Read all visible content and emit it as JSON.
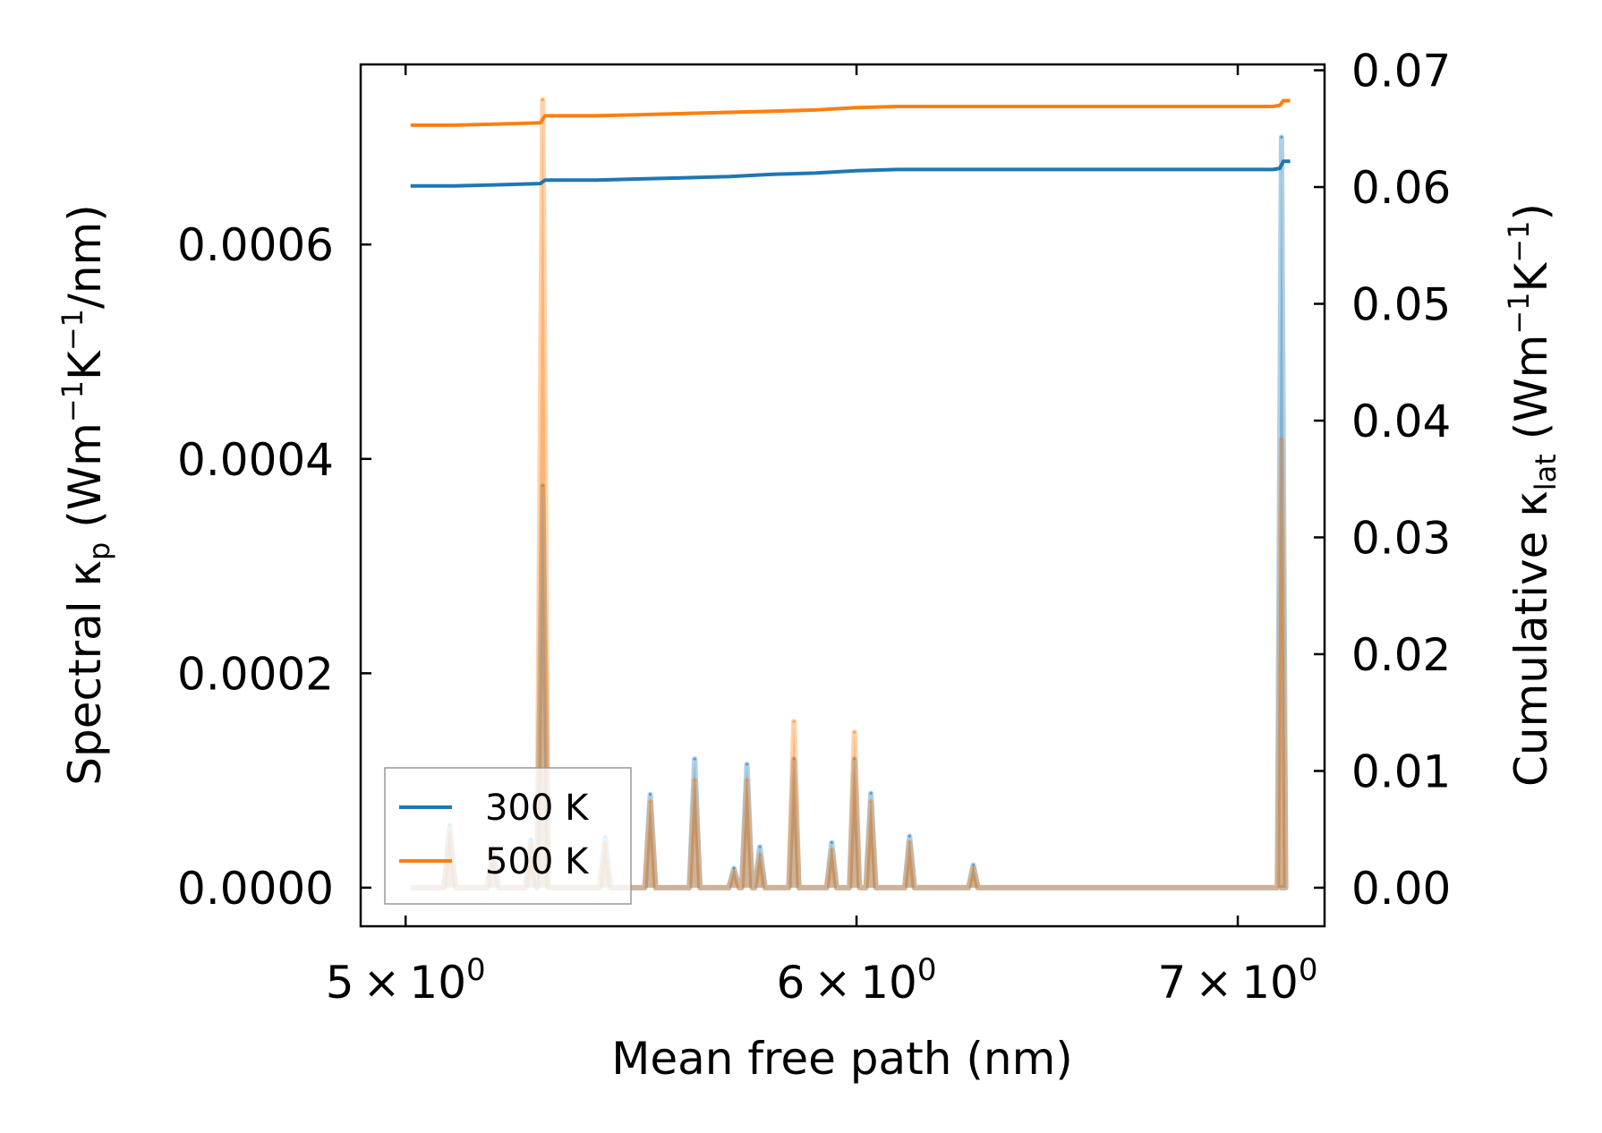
{
  "chart_data": {
    "type": "line",
    "xlabel": "Mean free path (nm)",
    "x_scale": "log",
    "xlim": [
      4.91,
      7.25
    ],
    "xticks": [
      {
        "value": 5,
        "mantissa": "5",
        "base": "10",
        "exp": "0"
      },
      {
        "value": 6,
        "mantissa": "6",
        "base": "10",
        "exp": "0"
      },
      {
        "value": 7,
        "mantissa": "7",
        "base": "10",
        "exp": "0"
      }
    ],
    "ylabel_left": {
      "prefix": "Spectral κ",
      "sub": "p",
      "unit_a": " (Wm",
      "exp_a": "−1",
      "unit_b": "K",
      "exp_b": "−1",
      "unit_c": "/nm)"
    },
    "ylabel_right": {
      "prefix": "Cumulative κ",
      "sub": "lat",
      "unit_a": " (Wm",
      "exp_a": "−1",
      "unit_b": "K",
      "exp_b": "−1",
      "unit_c": ")"
    },
    "ylim_left": [
      -3.6e-05,
      0.000768
    ],
    "ylim_right": [
      -0.0033,
      0.0705
    ],
    "yticks_left": [
      {
        "value": 0.0,
        "label": "0.0000"
      },
      {
        "value": 0.0002,
        "label": "0.0002"
      },
      {
        "value": 0.0004,
        "label": "0.0004"
      },
      {
        "value": 0.0006,
        "label": "0.0006"
      }
    ],
    "yticks_right": [
      {
        "value": 0.0,
        "label": "0.00"
      },
      {
        "value": 0.01,
        "label": "0.01"
      },
      {
        "value": 0.02,
        "label": "0.02"
      },
      {
        "value": 0.03,
        "label": "0.03"
      },
      {
        "value": 0.04,
        "label": "0.04"
      },
      {
        "value": 0.05,
        "label": "0.05"
      },
      {
        "value": 0.06,
        "label": "0.06"
      },
      {
        "value": 0.07,
        "label": "0.07"
      }
    ],
    "legend_position": "lower-left",
    "series": [
      {
        "name": "300 K",
        "color": "#1f77b4",
        "spectral_baseline_x": [
          5.01,
          7.12
        ],
        "spectral_peaks": [
          {
            "x": 5.09,
            "y": 5.8e-05
          },
          {
            "x": 5.18,
            "y": 3.7e-05
          },
          {
            "x": 5.26,
            "y": 4.5e-05
          },
          {
            "x": 5.285,
            "y": 0.000375
          },
          {
            "x": 5.42,
            "y": 4.7e-05
          },
          {
            "x": 5.52,
            "y": 8.7e-05
          },
          {
            "x": 5.62,
            "y": 0.00012
          },
          {
            "x": 5.71,
            "y": 1.8e-05
          },
          {
            "x": 5.74,
            "y": 0.000115
          },
          {
            "x": 5.77,
            "y": 3.8e-05
          },
          {
            "x": 5.85,
            "y": 0.00012
          },
          {
            "x": 5.94,
            "y": 4.2e-05
          },
          {
            "x": 5.995,
            "y": 0.00012
          },
          {
            "x": 6.035,
            "y": 8.8e-05
          },
          {
            "x": 6.13,
            "y": 4.8e-05
          },
          {
            "x": 6.29,
            "y": 2.1e-05
          },
          {
            "x": 7.125,
            "y": 0.0007
          }
        ],
        "cumulative": {
          "x": [
            5.01,
            5.1,
            5.2,
            5.28,
            5.29,
            5.4,
            5.5,
            5.6,
            5.7,
            5.8,
            5.9,
            6.0,
            6.1,
            6.2,
            6.4,
            6.6,
            6.8,
            7.0,
            7.1,
            7.12,
            7.13,
            7.15
          ],
          "y": [
            0.0601,
            0.0601,
            0.0602,
            0.0603,
            0.0606,
            0.0606,
            0.0607,
            0.0608,
            0.0609,
            0.0611,
            0.0612,
            0.0614,
            0.0615,
            0.0615,
            0.0615,
            0.0615,
            0.0615,
            0.0615,
            0.0615,
            0.0616,
            0.0622,
            0.0622
          ]
        }
      },
      {
        "name": "500 K",
        "color": "#ff7f0e",
        "spectral_baseline_x": [
          5.01,
          7.12
        ],
        "spectral_peaks": [
          {
            "x": 5.09,
            "y": 5e-05
          },
          {
            "x": 5.18,
            "y": 3.2e-05
          },
          {
            "x": 5.26,
            "y": 4e-05
          },
          {
            "x": 5.285,
            "y": 0.000735
          },
          {
            "x": 5.42,
            "y": 4e-05
          },
          {
            "x": 5.52,
            "y": 8e-05
          },
          {
            "x": 5.62,
            "y": 0.0001
          },
          {
            "x": 5.71,
            "y": 1.5e-05
          },
          {
            "x": 5.74,
            "y": 0.0001
          },
          {
            "x": 5.77,
            "y": 3e-05
          },
          {
            "x": 5.85,
            "y": 0.000155
          },
          {
            "x": 5.94,
            "y": 3.5e-05
          },
          {
            "x": 5.995,
            "y": 0.000145
          },
          {
            "x": 6.035,
            "y": 8e-05
          },
          {
            "x": 6.13,
            "y": 4.2e-05
          },
          {
            "x": 6.29,
            "y": 1.8e-05
          },
          {
            "x": 7.125,
            "y": 0.000418
          }
        ],
        "cumulative": {
          "x": [
            5.01,
            5.1,
            5.2,
            5.28,
            5.29,
            5.4,
            5.5,
            5.6,
            5.7,
            5.8,
            5.9,
            6.0,
            6.1,
            6.2,
            6.4,
            6.6,
            6.8,
            7.0,
            7.1,
            7.12,
            7.13,
            7.15
          ],
          "y": [
            0.0653,
            0.0653,
            0.0654,
            0.0655,
            0.0661,
            0.0661,
            0.0662,
            0.0663,
            0.0664,
            0.0665,
            0.0666,
            0.0668,
            0.0669,
            0.0669,
            0.0669,
            0.0669,
            0.0669,
            0.0669,
            0.0669,
            0.067,
            0.0674,
            0.0674
          ]
        }
      }
    ]
  }
}
